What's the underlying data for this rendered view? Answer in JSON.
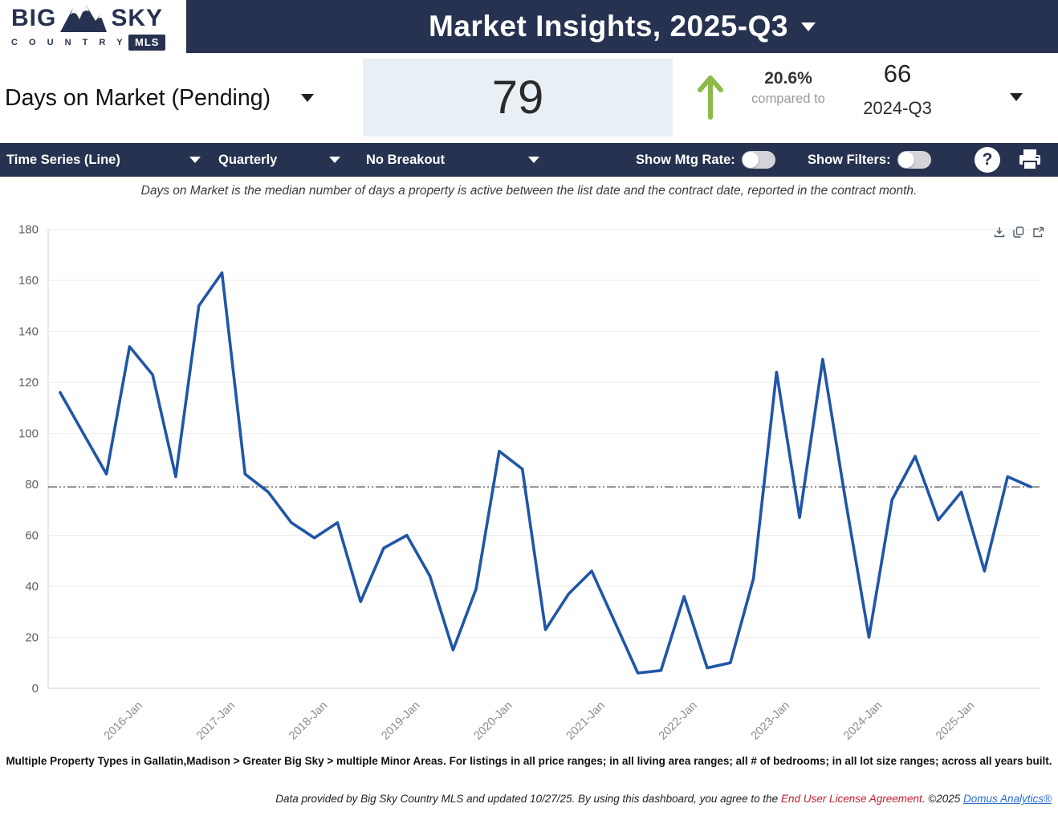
{
  "header": {
    "logo": {
      "big": "BIG",
      "sky": "SKY",
      "country": "C O U N T R Y",
      "mls": "MLS"
    },
    "title": "Market Insights, 2025-Q3"
  },
  "kpi": {
    "metric_label": "Days on Market (Pending)",
    "current_value": "79",
    "trend": "up",
    "trend_color": "#8cba4b",
    "change_percent": "20.6%",
    "compared_to_label": "compared to",
    "comparison_value": "66",
    "comparison_period": "2024-Q3"
  },
  "toolbar": {
    "chart_type": "Time Series (Line)",
    "frequency": "Quarterly",
    "breakout": "No Breakout",
    "mtg_rate_label": "Show Mtg Rate:",
    "mtg_rate_on": false,
    "filters_label": "Show Filters:",
    "filters_on": false,
    "help_label": "?"
  },
  "description": "Days on Market is the median number of days a property is active between the list date and the contract date, reported in the contract month.",
  "chart_data": {
    "type": "line",
    "title": "",
    "xlabel": "",
    "ylabel": "",
    "x": [
      "2015-Q1",
      "2015-Q2",
      "2015-Q3",
      "2015-Q4",
      "2016-Q1",
      "2016-Q2",
      "2016-Q3",
      "2016-Q4",
      "2017-Q1",
      "2017-Q2",
      "2017-Q3",
      "2017-Q4",
      "2018-Q1",
      "2018-Q2",
      "2018-Q3",
      "2018-Q4",
      "2019-Q1",
      "2019-Q2",
      "2019-Q3",
      "2019-Q4",
      "2020-Q1",
      "2020-Q2",
      "2020-Q3",
      "2020-Q4",
      "2021-Q1",
      "2021-Q2",
      "2021-Q3",
      "2021-Q4",
      "2022-Q1",
      "2022-Q2",
      "2022-Q3",
      "2022-Q4",
      "2023-Q1",
      "2023-Q2",
      "2023-Q3",
      "2023-Q4",
      "2024-Q1",
      "2024-Q2",
      "2024-Q3",
      "2024-Q4",
      "2025-Q1",
      "2025-Q2",
      "2025-Q3"
    ],
    "values": [
      116,
      100,
      84,
      134,
      123,
      83,
      150,
      163,
      84,
      77,
      65,
      59,
      65,
      34,
      55,
      60,
      44,
      15,
      39,
      93,
      86,
      23,
      37,
      46,
      26,
      6,
      7,
      36,
      8,
      10,
      43,
      124,
      67,
      129,
      73,
      20,
      74,
      91,
      66,
      77,
      46,
      83,
      79
    ],
    "ylim": [
      0,
      180
    ],
    "ytick_interval": 20,
    "xtick_labels": [
      "2016-Jan",
      "2017-Jan",
      "2018-Jan",
      "2019-Jan",
      "2020-Jan",
      "2021-Jan",
      "2022-Jan",
      "2023-Jan",
      "2024-Jan",
      "2025-Jan"
    ],
    "reference_line": 79,
    "series_color": "#2056a6",
    "grid": true,
    "legend": "none"
  },
  "footer": {
    "filters_summary": "Multiple Property Types in Gallatin,Madison > Greater Big Sky > multiple Minor Areas. For listings in all price ranges; in all living area ranges; all # of bedrooms; in all lot size ranges; across all years built.",
    "legal_prefix": "Data provided by Big Sky Country MLS and updated 10/27/25.  By using this dashboard, you agree to the ",
    "eula_link": "End User License Agreement",
    "legal_mid": ".  ©2025 ",
    "analytics_link": "Domus Analytics®"
  }
}
